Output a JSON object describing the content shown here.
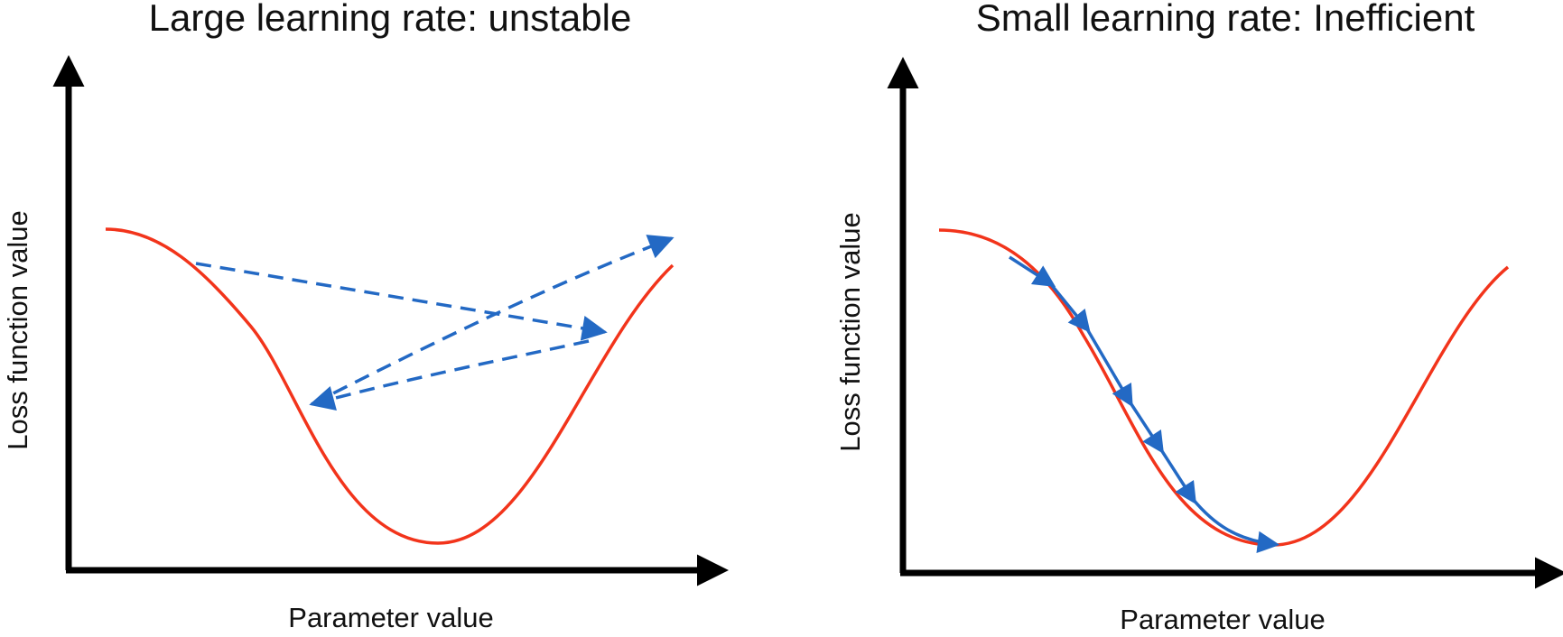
{
  "colors": {
    "loss_curve": "#f2341b",
    "step_arrows": "#2369c4",
    "axes": "#000000",
    "text": "#111111"
  },
  "panels": [
    {
      "title": "Large learning rate: unstable",
      "xlabel": "Parameter value",
      "ylabel": "Loss function value",
      "step_style": "dashed"
    },
    {
      "title": "Small learning rate: Inefficient",
      "xlabel": "Parameter value",
      "ylabel": "Loss function value",
      "step_style": "solid"
    }
  ]
}
